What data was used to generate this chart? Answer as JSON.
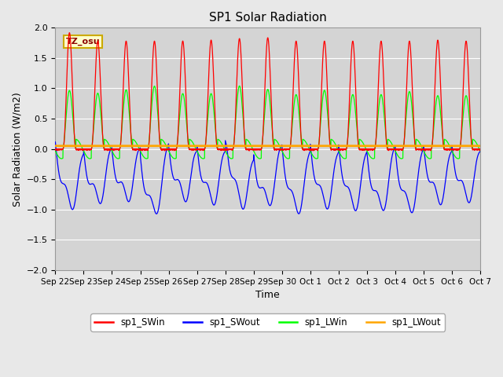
{
  "title": "SP1 Solar Radiation",
  "ylabel": "Solar Radiation (W/m2)",
  "xlabel": "Time",
  "ylim": [
    -2.0,
    2.0
  ],
  "yticks": [
    -2.0,
    -1.5,
    -1.0,
    -0.5,
    0.0,
    0.5,
    1.0,
    1.5,
    2.0
  ],
  "xtick_labels": [
    "Sep 22",
    "Sep 23",
    "Sep 24",
    "Sep 25",
    "Sep 26",
    "Sep 27",
    "Sep 28",
    "Sep 29",
    "Sep 30",
    "Oct 1",
    "Oct 2",
    "Oct 3",
    "Oct 4",
    "Oct 5",
    "Oct 6",
    "Oct 7"
  ],
  "colors": {
    "sp1_SWin": "red",
    "sp1_SWout": "blue",
    "sp1_LWin": "lime",
    "sp1_LWout": "orange"
  },
  "legend_labels": [
    "sp1_SWin",
    "sp1_SWout",
    "sp1_LWin",
    "sp1_LWout"
  ],
  "tz_label": "TZ_osu",
  "fig_bg_color": "#e8e8e8",
  "plot_bg_color": "#d4d4d4",
  "n_days": 15,
  "points_per_day": 288,
  "SWin_peak": 1.88,
  "SWout_base": -0.85,
  "SWout_amp": 0.65,
  "LWin_peak": 1.0,
  "LWin_night_dip": -0.18,
  "LWout_value": 0.05
}
